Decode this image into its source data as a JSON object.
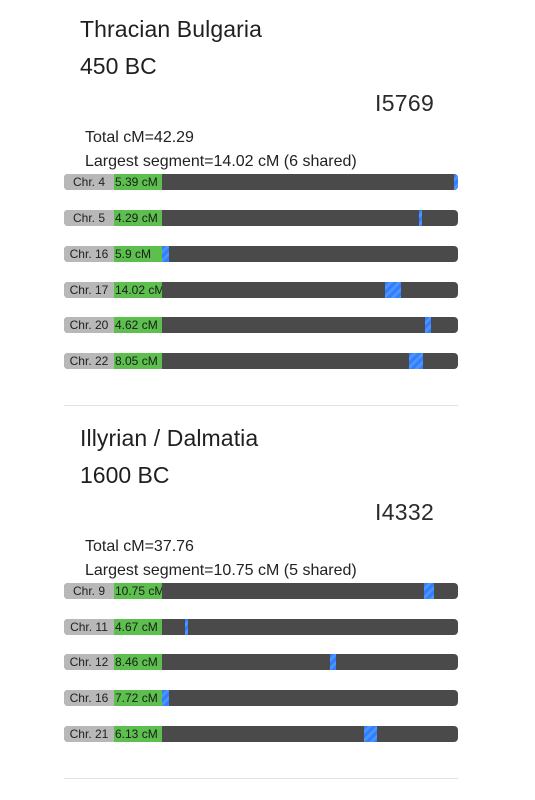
{
  "matches": [
    {
      "region": "Thracian Bulgaria",
      "date": "450 BC",
      "sample": "I5769",
      "total": "Total cM=42.29",
      "largest": "Largest segment=14.02 cM (6 shared)",
      "segments": [
        {
          "chr": "Chr. 4",
          "cm": "5.39 cM",
          "start_frac": 0.985,
          "end_frac": 1.0
        },
        {
          "chr": "Chr. 5",
          "cm": "4.29 cM",
          "start_frac": 0.868,
          "end_frac": 0.878
        },
        {
          "chr": "Chr. 16",
          "cm": "5.9 cM",
          "start_frac": 0.0,
          "end_frac": 0.025
        },
        {
          "chr": "Chr. 17",
          "cm": "14.02 cM",
          "start_frac": 0.755,
          "end_frac": 0.806
        },
        {
          "chr": "Chr. 20",
          "cm": "4.62 cM",
          "start_frac": 0.889,
          "end_frac": 0.908
        },
        {
          "chr": "Chr. 22",
          "cm": "8.05 cM",
          "start_frac": 0.833,
          "end_frac": 0.882
        }
      ]
    },
    {
      "region": "Illyrian / Dalmatia",
      "date": "1600 BC",
      "sample": "I4332",
      "total": "Total cM=37.76",
      "largest": "Largest segment=10.75 cM (5 shared)",
      "segments": [
        {
          "chr": "Chr. 9",
          "cm": "10.75 cM",
          "start_frac": 0.885,
          "end_frac": 0.919
        },
        {
          "chr": "Chr. 11",
          "cm": "4.67 cM",
          "start_frac": 0.078,
          "end_frac": 0.088
        },
        {
          "chr": "Chr. 12",
          "cm": "8.46 cM",
          "start_frac": 0.567,
          "end_frac": 0.588
        },
        {
          "chr": "Chr. 16",
          "cm": "7.72 cM",
          "start_frac": 0.0,
          "end_frac": 0.025
        },
        {
          "chr": "Chr. 21",
          "cm": "6.13 cM",
          "start_frac": 0.681,
          "end_frac": 0.727
        }
      ]
    }
  ]
}
